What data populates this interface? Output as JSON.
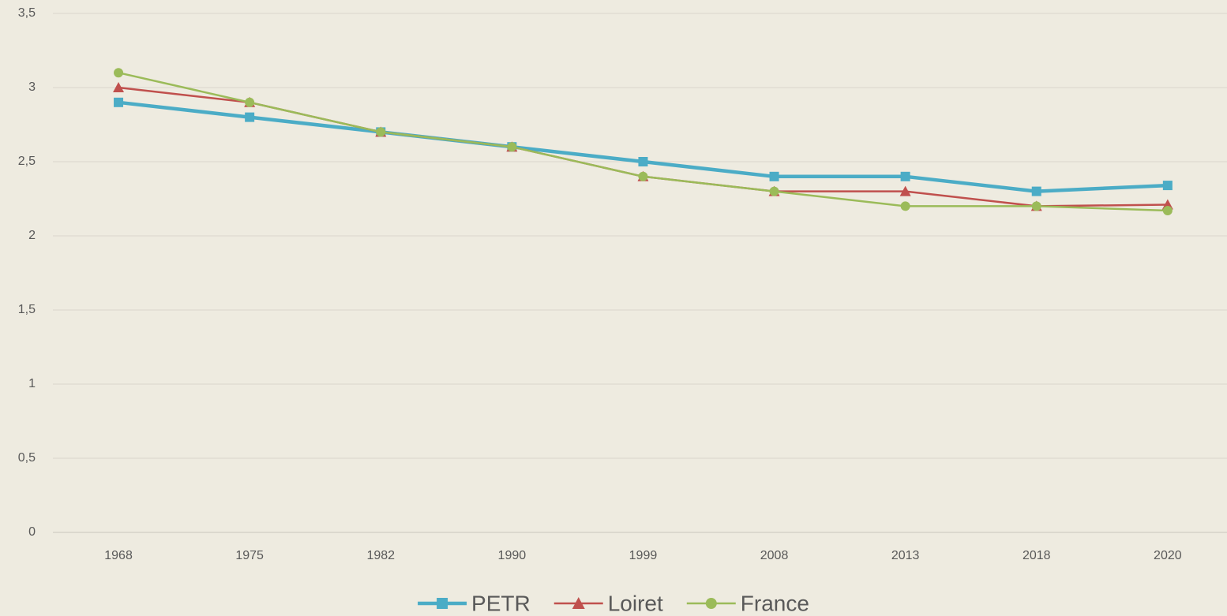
{
  "chart_data": {
    "type": "line",
    "categories": [
      "1968",
      "1975",
      "1982",
      "1990",
      "1999",
      "2008",
      "2013",
      "2018",
      "2020"
    ],
    "series": [
      {
        "name": "PETR",
        "color": "#4bacc6",
        "marker": "square",
        "values": [
          2.9,
          2.8,
          2.7,
          2.6,
          2.5,
          2.4,
          2.4,
          2.3,
          2.34
        ]
      },
      {
        "name": "Loiret",
        "color": "#c0504d",
        "marker": "triangle",
        "values": [
          3.0,
          2.9,
          2.7,
          2.6,
          2.4,
          2.3,
          2.3,
          2.2,
          2.21
        ]
      },
      {
        "name": "France",
        "color": "#9bbb59",
        "marker": "circle",
        "values": [
          3.1,
          2.9,
          2.7,
          2.6,
          2.4,
          2.3,
          2.2,
          2.2,
          2.17
        ]
      }
    ],
    "ylim": [
      0,
      3.5
    ],
    "yticks": [
      0,
      {
        "value": 0.5,
        "label": "0,5"
      },
      1,
      {
        "value": 1.5,
        "label": "1,5"
      },
      2,
      {
        "value": 2.5,
        "label": "2,5"
      },
      3,
      {
        "value": 3.5,
        "label": "3,5"
      }
    ],
    "grid": true,
    "legend": "bottom"
  }
}
